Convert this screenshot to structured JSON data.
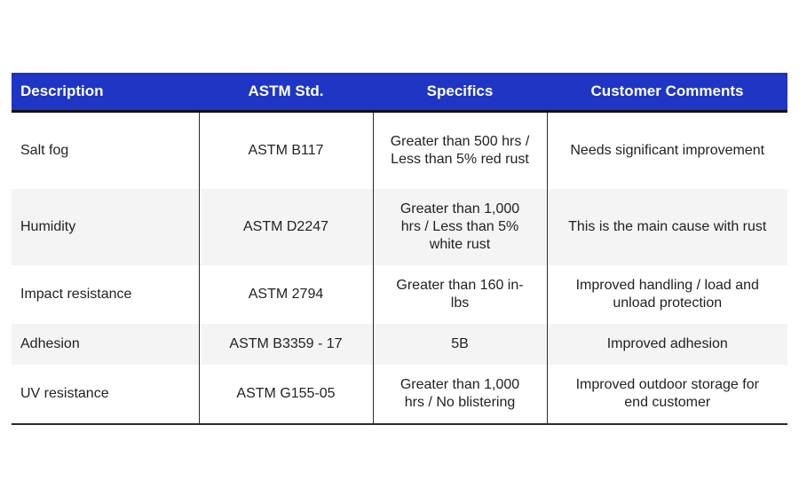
{
  "table": {
    "headers": {
      "description": "Description",
      "astm": "ASTM Std.",
      "specifics": "Specifics",
      "comments": "Customer Comments"
    },
    "rows": [
      {
        "description": "Salt fog",
        "astm": "ASTM B117",
        "specifics": "Greater than 500 hrs / Less than 5% red rust",
        "comments": "Needs significant improvement"
      },
      {
        "description": "Humidity",
        "astm": "ASTM D2247",
        "specifics": "Greater than 1,000 hrs / Less than 5% white rust",
        "comments": "This is the main cause with rust"
      },
      {
        "description": "Impact resistance",
        "astm": "ASTM 2794",
        "specifics": "Greater than 160 in-lbs",
        "comments": "Improved handling / load and unload protection"
      },
      {
        "description": "Adhesion",
        "astm": "ASTM B3359 - 17",
        "specifics": "5B",
        "comments": "Improved adhesion"
      },
      {
        "description": "UV resistance",
        "astm": "ASTM G155-05",
        "specifics": "Greater than 1,000 hrs / No blistering",
        "comments": "Improved outdoor storage for end customer"
      }
    ]
  },
  "colors": {
    "header_bg": "#1e36c3",
    "header_text": "#ffffff",
    "stripe_bg": "#f4f4f4"
  }
}
